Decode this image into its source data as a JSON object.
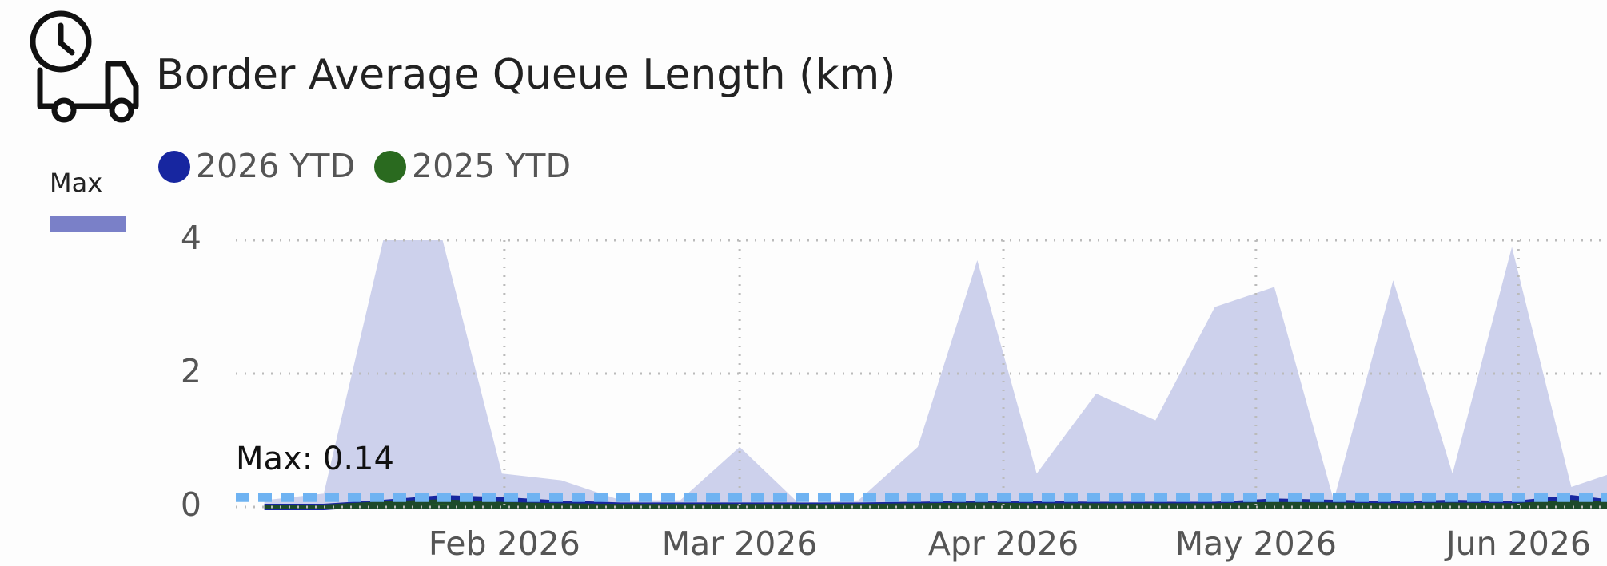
{
  "chart_data": {
    "type": "area",
    "title": "Border Average Queue Length (km)",
    "categories": [
      null,
      null,
      null,
      null,
      null,
      null,
      null,
      null,
      null,
      null,
      null,
      null,
      null,
      null,
      null,
      null,
      null,
      null,
      null,
      null,
      null,
      null,
      null,
      null
    ],
    "series": [
      {
        "name": "Max",
        "color": "#cdd1ec",
        "legend_color": "#7a80c8",
        "style": "area",
        "values": [
          0.1,
          0.2,
          4,
          4,
          0.5,
          0.4,
          0.1,
          0.1,
          0.9,
          0.05,
          0.1,
          0.9,
          3.7,
          0.5,
          1.7,
          1.3,
          3.0,
          3.3,
          0.1,
          3.4,
          0.5,
          3.9,
          0.3,
          0.6
        ]
      },
      {
        "name": "2026 YTD",
        "color": "#1726a0",
        "style": "line",
        "values": [
          0,
          0,
          0.06,
          0.13,
          0.1,
          0.05,
          0.02,
          0.02,
          0.02,
          0.02,
          0.02,
          0.03,
          0.05,
          0.04,
          0.03,
          0.03,
          0.03,
          0.08,
          0.06,
          0.04,
          0.06,
          0.04,
          0.13,
          0.03
        ]
      },
      {
        "name": "2025 YTD",
        "color": "#2a6a1f",
        "style": "area",
        "values": [
          0,
          0,
          0.05,
          0.08,
          0.04,
          0.02,
          0.01,
          0.01,
          0.01,
          0.01,
          0.01,
          0.02,
          0.03,
          0.02,
          0.02,
          0.02,
          0.02,
          0.04,
          0.03,
          0.02,
          0.03,
          0.02,
          0.07,
          0.02
        ]
      }
    ],
    "reference_line": {
      "value": 0.14,
      "label": "Max: 0.14",
      "color": "#6fb3f2"
    },
    "xlim": [
      -0.48,
      22.6
    ],
    "xticks": [
      {
        "value": 4.04,
        "label": "Feb 2026"
      },
      {
        "value": 8,
        "label": "Mar 2026"
      },
      {
        "value": 12.44,
        "label": "Apr 2026"
      },
      {
        "value": 16.69,
        "label": "May 2026"
      },
      {
        "value": 21.11,
        "label": "Jun 2026"
      }
    ],
    "ylim": [
      0,
      4
    ],
    "yticks": [
      0,
      2,
      4
    ],
    "grid": true
  }
}
